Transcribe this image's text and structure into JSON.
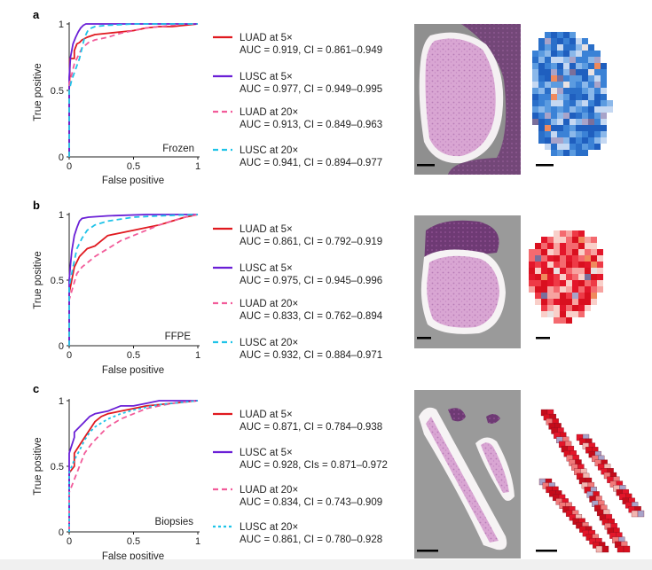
{
  "chart_data": [
    {
      "type": "line",
      "panel_label": "a",
      "xlabel": "False positive",
      "ylabel": "True positive",
      "xlim": [
        0,
        1
      ],
      "ylim": [
        0,
        1
      ],
      "x_ticks": [
        "0",
        "0.5",
        "1"
      ],
      "y_ticks": [
        "0",
        "0.5",
        "1"
      ],
      "inset_label": "Frozen",
      "series": [
        {
          "name": "LUAD at 5×",
          "stats": "AUC = 0.919, CI = 0.861–0.949",
          "color": "#e0191f",
          "dash": "solid",
          "x": [
            0,
            0,
            0.005,
            0.005,
            0.04,
            0.04,
            0.06,
            0.08,
            0.1,
            0.14,
            0.2,
            0.3,
            0.4,
            0.5,
            0.6,
            0.7,
            0.8,
            0.9,
            1
          ],
          "y": [
            0,
            0.5,
            0.62,
            0.74,
            0.74,
            0.8,
            0.85,
            0.86,
            0.88,
            0.9,
            0.92,
            0.93,
            0.94,
            0.95,
            0.97,
            0.98,
            0.98,
            0.99,
            1
          ]
        },
        {
          "name": "LUSC at 5×",
          "stats": "AUC = 0.977, CI = 0.949–0.995",
          "color": "#6a1fd6",
          "dash": "solid",
          "x": [
            0,
            0,
            0.01,
            0.03,
            0.05,
            0.07,
            0.09,
            0.11,
            0.13,
            0.5,
            1
          ],
          "y": [
            0,
            0.6,
            0.75,
            0.85,
            0.9,
            0.94,
            0.97,
            0.99,
            1,
            1,
            1
          ]
        },
        {
          "name": "LUAD at 20×",
          "stats": "AUC = 0.913, CI = 0.849–0.963",
          "color": "#f25c9a",
          "dash": "6,4",
          "x": [
            0,
            0,
            0.02,
            0.04,
            0.06,
            0.08,
            0.1,
            0.15,
            0.2,
            0.3,
            0.4,
            0.5,
            0.6,
            0.7,
            0.8,
            0.9,
            1
          ],
          "y": [
            0,
            0.55,
            0.62,
            0.7,
            0.74,
            0.78,
            0.82,
            0.86,
            0.88,
            0.9,
            0.93,
            0.95,
            0.97,
            0.98,
            0.99,
            1,
            1
          ]
        },
        {
          "name": "LUSC at 20×",
          "stats": "AUC = 0.941, CI = 0.894–0.977",
          "color": "#1fc3e8",
          "dash": "6,4",
          "x": [
            0,
            0,
            0.02,
            0.05,
            0.08,
            0.1,
            0.12,
            0.15,
            0.2,
            0.3,
            0.5,
            0.8,
            1
          ],
          "y": [
            0,
            0.5,
            0.58,
            0.66,
            0.74,
            0.82,
            0.9,
            0.96,
            0.98,
            0.99,
            1,
            1,
            1
          ]
        }
      ]
    },
    {
      "type": "line",
      "panel_label": "b",
      "xlabel": "False positive",
      "ylabel": "True positive",
      "xlim": [
        0,
        1
      ],
      "ylim": [
        0,
        1
      ],
      "x_ticks": [
        "0",
        "0.5",
        "1"
      ],
      "y_ticks": [
        "0",
        "0.5",
        "1"
      ],
      "inset_label": "FFPE",
      "series": [
        {
          "name": "LUAD at 5×",
          "stats": "AUC = 0.861, CI = 0.792–0.919",
          "color": "#e0191f",
          "dash": "solid",
          "x": [
            0,
            0,
            0.02,
            0.04,
            0.06,
            0.08,
            0.1,
            0.14,
            0.2,
            0.25,
            0.3,
            0.4,
            0.5,
            0.6,
            0.7,
            0.8,
            0.9,
            1
          ],
          "y": [
            0,
            0.4,
            0.5,
            0.6,
            0.64,
            0.68,
            0.7,
            0.74,
            0.76,
            0.8,
            0.84,
            0.86,
            0.88,
            0.9,
            0.92,
            0.95,
            0.98,
            1
          ]
        },
        {
          "name": "LUSC at 5×",
          "stats": "AUC = 0.975, CI = 0.945–0.996",
          "color": "#6a1fd6",
          "dash": "solid",
          "x": [
            0,
            0,
            0.01,
            0.02,
            0.04,
            0.06,
            0.08,
            0.1,
            0.15,
            0.3,
            0.6,
            1
          ],
          "y": [
            0,
            0.5,
            0.62,
            0.72,
            0.84,
            0.9,
            0.95,
            0.97,
            0.98,
            0.99,
            1,
            1
          ]
        },
        {
          "name": "LUAD at 20×",
          "stats": "AUC = 0.833, CI = 0.762–0.894",
          "color": "#f25c9a",
          "dash": "6,4",
          "x": [
            0,
            0,
            0.03,
            0.06,
            0.1,
            0.15,
            0.2,
            0.3,
            0.4,
            0.5,
            0.6,
            0.7,
            0.8,
            0.9,
            1
          ],
          "y": [
            0,
            0.35,
            0.45,
            0.55,
            0.6,
            0.64,
            0.68,
            0.74,
            0.8,
            0.84,
            0.88,
            0.92,
            0.95,
            0.98,
            1
          ]
        },
        {
          "name": "LUSC at 20×",
          "stats": "AUC = 0.932, CI = 0.884–0.971",
          "color": "#1fc3e8",
          "dash": "6,4",
          "x": [
            0,
            0,
            0.03,
            0.06,
            0.1,
            0.14,
            0.2,
            0.3,
            0.5,
            0.7,
            1
          ],
          "y": [
            0,
            0.45,
            0.6,
            0.74,
            0.82,
            0.88,
            0.92,
            0.95,
            0.98,
            0.99,
            1
          ]
        }
      ]
    },
    {
      "type": "line",
      "panel_label": "c",
      "xlabel": "False positive",
      "ylabel": "True positive",
      "xlim": [
        0,
        1
      ],
      "ylim": [
        0,
        1
      ],
      "x_ticks": [
        "0",
        "0.5",
        "1"
      ],
      "y_ticks": [
        "0",
        "0.5",
        "1"
      ],
      "inset_label": "Biopsies",
      "series": [
        {
          "name": "LUAD at 5×",
          "stats": "AUC = 0.871, CI = 0.784–0.938",
          "color": "#e0191f",
          "dash": "solid",
          "x": [
            0,
            0,
            0.04,
            0.04,
            0.08,
            0.12,
            0.16,
            0.2,
            0.25,
            0.3,
            0.4,
            0.5,
            0.6,
            0.8,
            1
          ],
          "y": [
            0,
            0.45,
            0.5,
            0.6,
            0.66,
            0.72,
            0.78,
            0.84,
            0.88,
            0.9,
            0.92,
            0.94,
            0.96,
            0.98,
            1
          ]
        },
        {
          "name": "LUSC at 5×",
          "stats": "AUC = 0.928, CIs = 0.871–0.972",
          "color": "#6a1fd6",
          "dash": "solid",
          "x": [
            0,
            0,
            0.04,
            0.04,
            0.08,
            0.12,
            0.16,
            0.2,
            0.3,
            0.4,
            0.5,
            0.6,
            0.7,
            0.8,
            1
          ],
          "y": [
            0,
            0.6,
            0.72,
            0.76,
            0.8,
            0.84,
            0.88,
            0.9,
            0.92,
            0.96,
            0.96,
            0.98,
            1,
            1,
            1
          ]
        },
        {
          "name": "LUAD at 20×",
          "stats": "AUC = 0.834, CI = 0.743–0.909",
          "color": "#f25c9a",
          "dash": "6,4",
          "x": [
            0,
            0,
            0.04,
            0.08,
            0.12,
            0.18,
            0.24,
            0.3,
            0.4,
            0.5,
            0.6,
            0.7,
            0.8,
            0.9,
            1
          ],
          "y": [
            0,
            0.3,
            0.4,
            0.5,
            0.6,
            0.68,
            0.74,
            0.8,
            0.86,
            0.9,
            0.94,
            0.96,
            0.98,
            0.99,
            1
          ]
        },
        {
          "name": "LUSC at 20×",
          "stats": "AUC = 0.861, CI = 0.780–0.928",
          "color": "#1fc3e8",
          "dash": "3,3",
          "x": [
            0,
            0,
            0.04,
            0.08,
            0.12,
            0.16,
            0.2,
            0.3,
            0.4,
            0.5,
            0.6,
            0.7,
            0.8,
            1
          ],
          "y": [
            0,
            0.45,
            0.55,
            0.62,
            0.7,
            0.76,
            0.8,
            0.86,
            0.9,
            0.93,
            0.95,
            0.97,
            0.98,
            1
          ]
        }
      ]
    }
  ],
  "colors": {
    "luad_5x": "#e0191f",
    "lusc_5x": "#6a1fd6",
    "luad_20x": "#f25c9a",
    "lusc_20x": "#1fc3e8",
    "slide_background": "#9e9e9e",
    "tissue": "#d69bd0",
    "heatmap_blue": "#2a6fc9",
    "heatmap_red": "#e3162a"
  }
}
